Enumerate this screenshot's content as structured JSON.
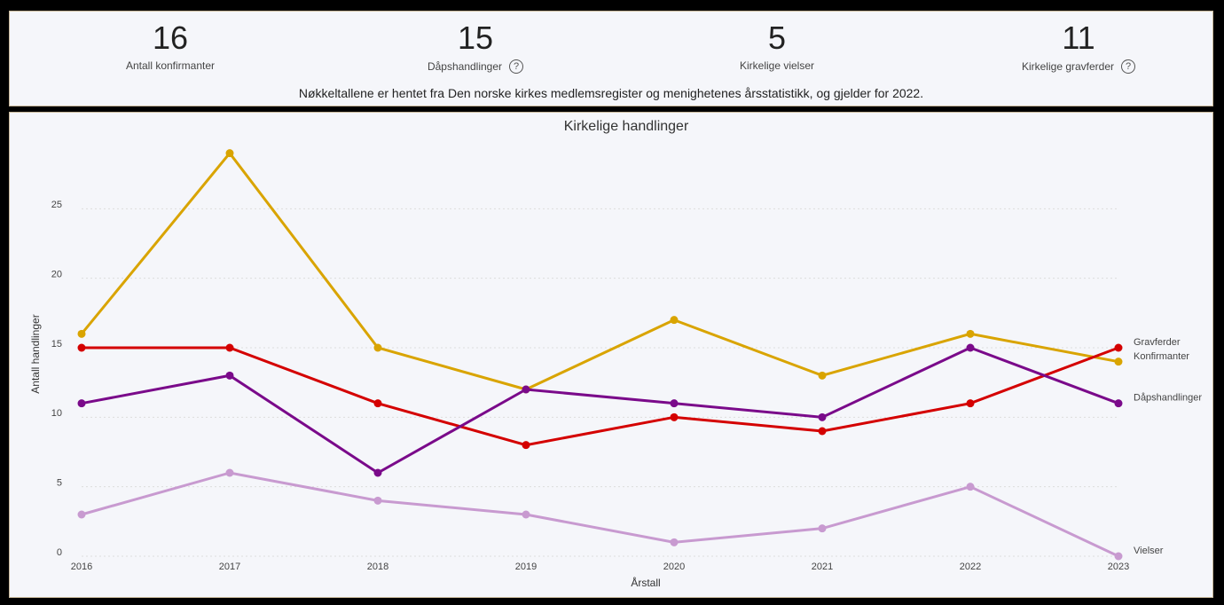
{
  "kpis": [
    {
      "value": 16,
      "label": "Antall konfirmanter",
      "help": false
    },
    {
      "value": 15,
      "label": "Dåpshandlinger",
      "help": true
    },
    {
      "value": 5,
      "label": "Kirkelige vielser",
      "help": false
    },
    {
      "value": 11,
      "label": "Kirkelige gravferder",
      "help": true
    }
  ],
  "note": "Nøkkeltallene er hentet fra Den norske kirkes medlemsregister og menighetenes årsstatistikk, og gjelder for 2022.",
  "chart_data": {
    "type": "line",
    "title": "Kirkelige handlinger",
    "x_label": "Årstall",
    "y_label": "Antall handlinger",
    "x": [
      2016,
      2017,
      2018,
      2019,
      2020,
      2021,
      2022,
      2023
    ],
    "xlim": [
      2016,
      2023
    ],
    "xticks": [
      2016,
      2017,
      2018,
      2019,
      2020,
      2021,
      2022,
      2023
    ],
    "ylim": [
      0,
      30
    ],
    "yticks": [
      0,
      5,
      10,
      15,
      20,
      25
    ],
    "grid": true,
    "series": [
      {
        "name": "Konfirmanter",
        "color": "#d9a400",
        "values": [
          16,
          29,
          15,
          12,
          17,
          13,
          16,
          14
        ]
      },
      {
        "name": "Gravferder",
        "color": "#d40000",
        "values": [
          15,
          15,
          11,
          8,
          10,
          9,
          11,
          15
        ]
      },
      {
        "name": "Dåpshandlinger",
        "color": "#7a0a8a",
        "values": [
          11,
          13,
          6,
          12,
          11,
          10,
          15,
          11
        ]
      },
      {
        "name": "Vielser",
        "color": "#c89ad0",
        "values": [
          3,
          6,
          4,
          3,
          1,
          2,
          5,
          0
        ]
      }
    ]
  }
}
